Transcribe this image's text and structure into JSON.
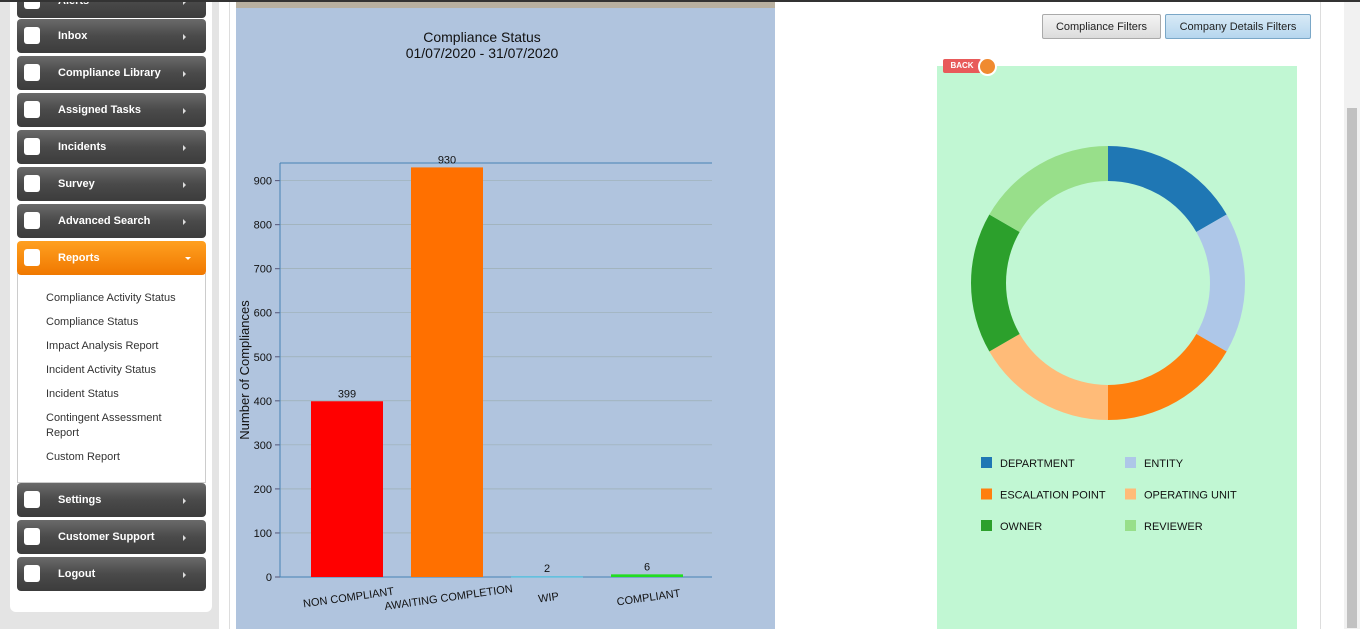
{
  "sidebar": {
    "items": [
      "Alerts",
      "Inbox",
      "Compliance Library",
      "Assigned Tasks",
      "Incidents",
      "Survey",
      "Advanced Search",
      "Reports",
      "Settings",
      "Customer Support",
      "Logout"
    ],
    "active": "Reports",
    "submenu": [
      "Compliance Activity Status",
      "Compliance Status",
      "Impact Analysis Report",
      "Incident Activity Status",
      "Incident Status",
      "Contingent Assessment Report",
      "Custom Report"
    ]
  },
  "buttons": [
    "Compliance Filters",
    "Company Details Filters"
  ],
  "back": "BACK",
  "chart_data": [
    {
      "type": "bar",
      "title": "Compliance Status",
      "subtitle": "01/07/2020 - 31/07/2020",
      "y_label": "Number of Compliances",
      "categories": [
        "NON COMPLIANT",
        "AWAITING COMPLETION",
        "WIP",
        "COMPLIANT"
      ],
      "values": [
        399,
        930,
        2,
        6
      ],
      "colors": [
        "#ff0000",
        "#ff7000",
        "#5bc0de",
        "#22dd22"
      ],
      "ylim": [
        0,
        940
      ],
      "yticks": [
        0,
        100,
        200,
        300,
        400,
        500,
        600,
        700,
        800,
        900
      ],
      "grid": true
    },
    {
      "type": "donut",
      "categories": [
        "DEPARTMENT",
        "ENTITY",
        "ESCALATION POINT",
        "OPERATING UNIT",
        "OWNER",
        "REVIEWER"
      ],
      "values": [
        1,
        1,
        1,
        1,
        1,
        1
      ],
      "colors": [
        "#1f77b4",
        "#aec7e8",
        "#ff7f0e",
        "#ffbb78",
        "#2ca02c",
        "#98df8a"
      ]
    }
  ]
}
